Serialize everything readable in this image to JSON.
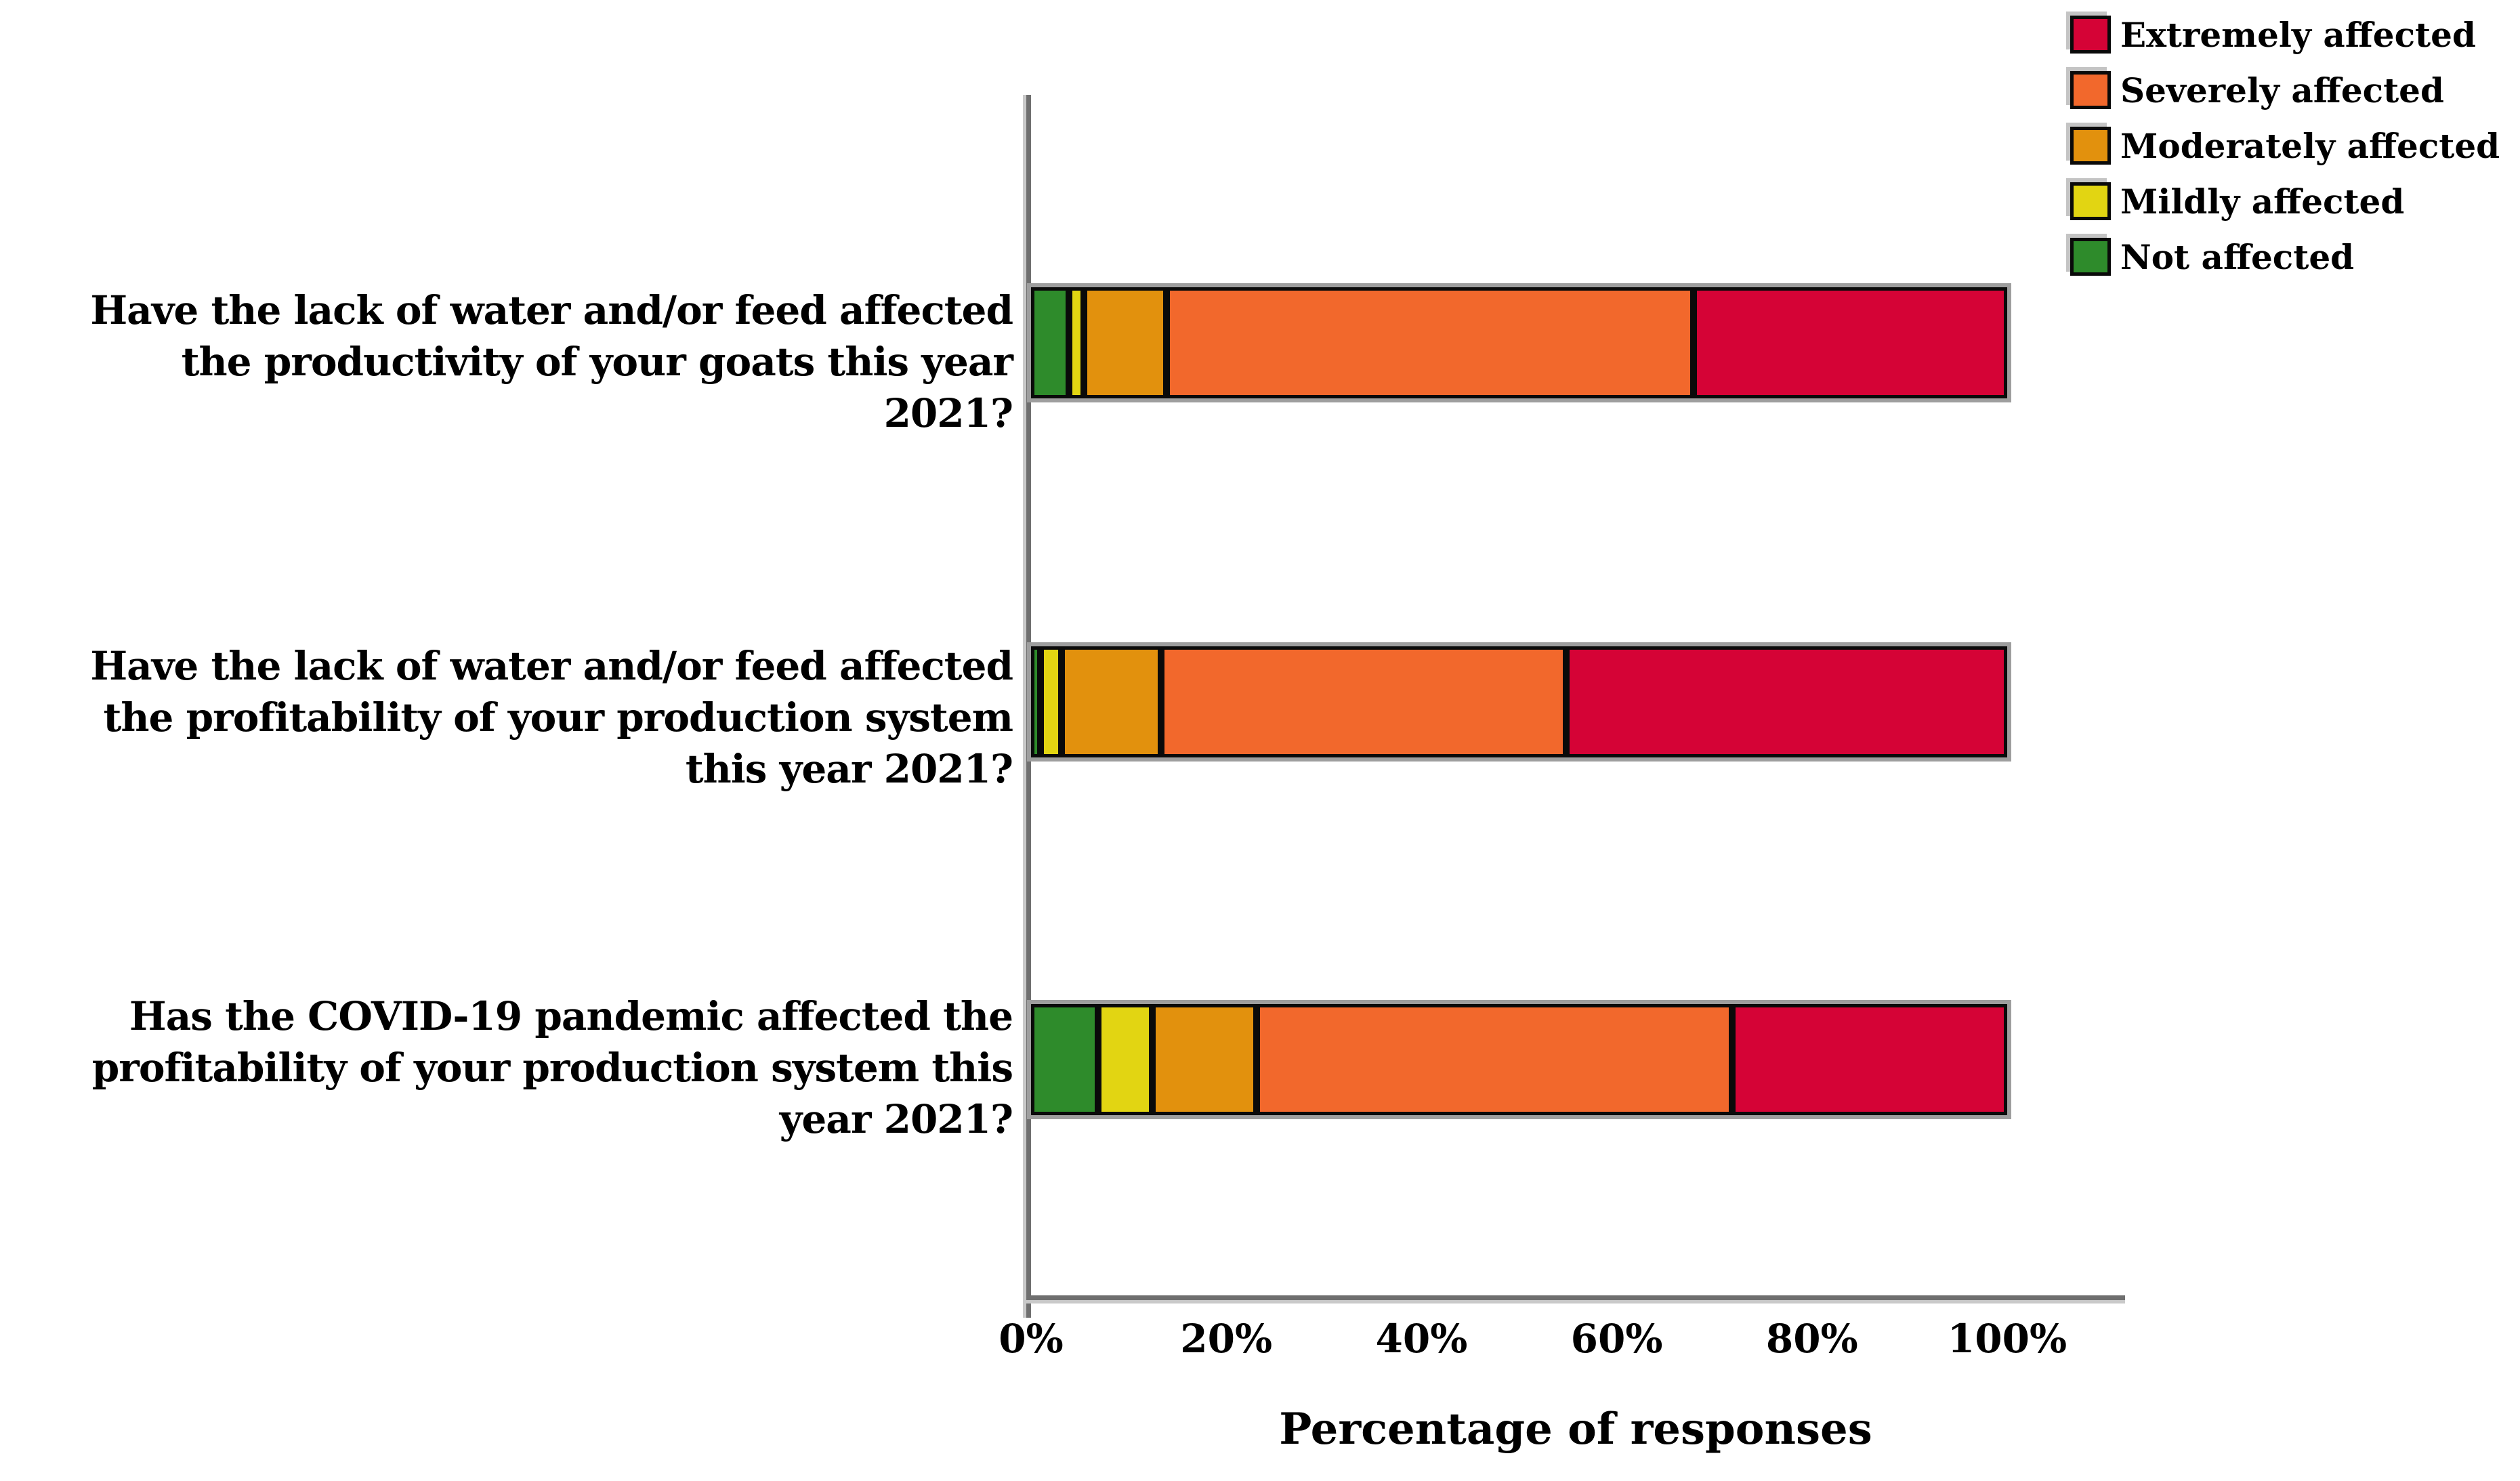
{
  "figure": {
    "background": "#ffffff",
    "x_axis": {
      "title": "Percentage of responses",
      "ticks": [
        {
          "label": "0%",
          "value": 0
        },
        {
          "label": "20%",
          "value": 20
        },
        {
          "label": "40%",
          "value": 40
        },
        {
          "label": "60%",
          "value": 60
        },
        {
          "label": "80%",
          "value": 80
        },
        {
          "label": "100%",
          "value": 100
        }
      ]
    },
    "legend": [
      {
        "label": "Extremely affected",
        "color": "#D50336"
      },
      {
        "label": "Severely affected",
        "color": "#F2682C"
      },
      {
        "label": "Moderately affected",
        "color": "#E2910D"
      },
      {
        "label": "Mildly affected",
        "color": "#E2D512"
      },
      {
        "label": "Not affected",
        "color": "#2E8B2B"
      }
    ]
  },
  "questions": [
    {
      "lines": [
        "Have the lack of water and/or feed affected",
        "the productivity of your goats this year",
        "2021?"
      ]
    },
    {
      "lines": [
        "Have the lack of water and/or feed affected",
        "the profitability of your production system",
        "this year 2021?"
      ]
    },
    {
      "lines": [
        "Has the COVID-19 pandemic affected the",
        "profitability of your production system this",
        "year 2021?"
      ]
    }
  ],
  "chart_data": {
    "type": "bar",
    "orientation": "horizontal",
    "stacked": true,
    "unit": "percent of responses",
    "title": "",
    "xlabel": "Percentage of responses",
    "ylabel": "",
    "xlim": [
      0,
      100
    ],
    "x_tick_labels": [
      "0%",
      "20%",
      "40%",
      "60%",
      "80%",
      "100%"
    ],
    "grid": false,
    "legend_position": "top-right",
    "legend_order": [
      "Extremely affected",
      "Severely affected",
      "Moderately affected",
      "Mildly affected",
      "Not affected"
    ],
    "categories": [
      "Have the lack of water and/or feed affected the productivity of your goats this year 2021?",
      "Have the lack of water and/or feed affected the profitability of your production system this year 2021?",
      "Has the COVID-19 pandemic affected the profitability of your production system this year 2021?"
    ],
    "series": [
      {
        "name": "Not affected",
        "color": "#2E8B2B",
        "values": [
          3.9,
          1.0,
          6.9
        ]
      },
      {
        "name": "Mildly affected",
        "color": "#E2D512",
        "values": [
          1.5,
          2.1,
          5.5
        ]
      },
      {
        "name": "Moderately affected",
        "color": "#E2910D",
        "values": [
          8.5,
          10.2,
          10.7
        ]
      },
      {
        "name": "Severely affected",
        "color": "#F2682C",
        "values": [
          54.0,
          41.5,
          48.7
        ]
      },
      {
        "name": "Extremely affected",
        "color": "#D50336",
        "values": [
          32.1,
          45.2,
          28.2
        ]
      }
    ]
  }
}
